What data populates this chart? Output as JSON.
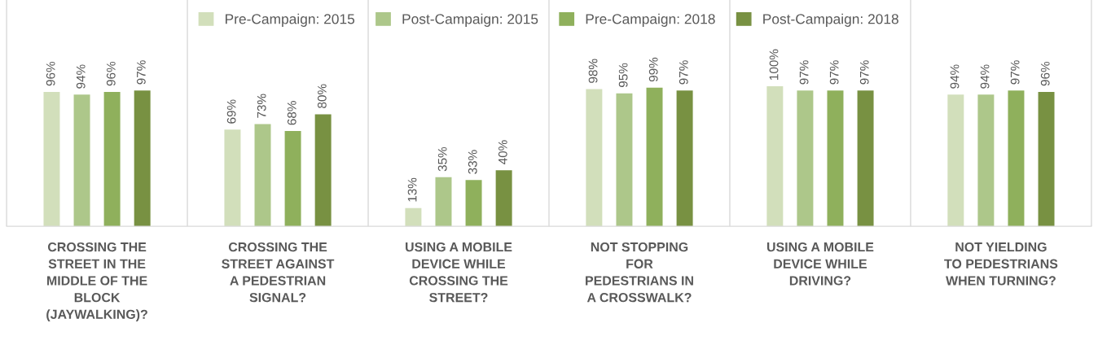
{
  "chart_data": {
    "type": "bar",
    "categories": [
      "CROSSING THE\nSTREET IN THE\nMIDDLE OF THE\nBLOCK\n(JAYWALKING)?",
      "CROSSING THE\nSTREET AGAINST\nA PEDESTRIAN\nSIGNAL?",
      "USING A MOBILE\nDEVICE WHILE\nCROSSING THE\nSTREET?",
      "NOT STOPPING\nFOR\nPEDESTRIANS IN\nA CROSSWALK?",
      "USING A MOBILE\nDEVICE WHILE\nDRIVING?",
      "NOT YIELDING\nTO PEDESTRIANS\nWHEN TURNING?"
    ],
    "series": [
      {
        "name": "Pre-Campaign: 2015",
        "color": "#d2dfbb",
        "values": [
          96,
          69,
          13,
          98,
          100,
          94
        ],
        "value_labels": [
          "96%",
          "69%",
          "13%",
          "98%",
          "100%",
          "94%"
        ]
      },
      {
        "name": "Post-Campaign: 2015",
        "color": "#adc78a",
        "values": [
          94,
          73,
          35,
          95,
          97,
          94
        ],
        "value_labels": [
          "94%",
          "73%",
          "35%",
          "95%",
          "97%",
          "94%"
        ]
      },
      {
        "name": "Pre-Campaign: 2018",
        "color": "#8fb05c",
        "values": [
          96,
          68,
          33,
          99,
          97,
          97
        ],
        "value_labels": [
          "96%",
          "68%",
          "33%",
          "99%",
          "97%",
          "97%"
        ]
      },
      {
        "name": "Post-Campaign: 2018",
        "color": "#789142",
        "values": [
          97,
          80,
          40,
          97,
          97,
          96
        ],
        "value_labels": [
          "97%",
          "80%",
          "40%",
          "97%",
          "97%",
          "96%"
        ]
      }
    ],
    "legend": "top",
    "grid": false
  }
}
